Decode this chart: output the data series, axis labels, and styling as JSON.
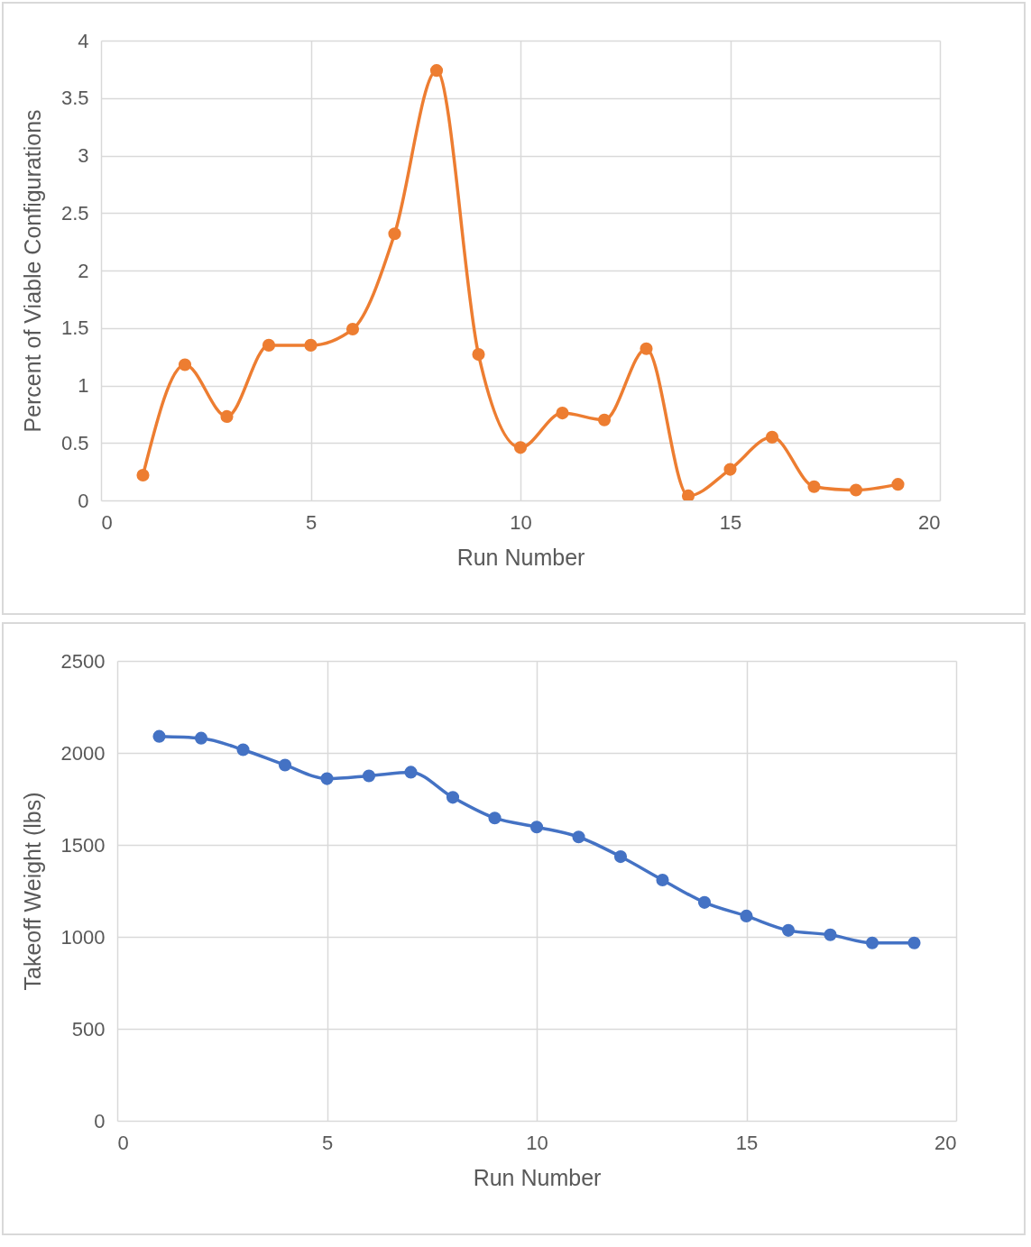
{
  "chart_data": [
    {
      "type": "line",
      "xlabel": "Run Number",
      "ylabel": "Percent of Viable Configurations",
      "x": [
        1,
        2,
        3,
        4,
        5,
        6,
        7,
        8,
        9,
        10,
        11,
        12,
        13,
        14,
        15,
        16,
        17,
        18,
        19
      ],
      "series": [
        {
          "color": "#ed7d31",
          "values": [
            0.22,
            1.18,
            0.73,
            1.35,
            1.35,
            1.49,
            2.32,
            3.74,
            1.27,
            0.46,
            0.76,
            0.7,
            1.32,
            0.04,
            0.27,
            0.55,
            0.12,
            0.09,
            0.14
          ]
        }
      ],
      "xlim": [
        0,
        20
      ],
      "xticks": [
        0,
        5,
        10,
        15,
        20
      ],
      "ylim": [
        0,
        4
      ],
      "yticks": [
        0,
        0.5,
        1,
        1.5,
        2,
        2.5,
        3,
        3.5,
        4
      ],
      "grid": true,
      "marker": "circle",
      "line_style": "solid"
    },
    {
      "type": "line",
      "xlabel": "Run Number",
      "ylabel": "Takeoff Weight (lbs)",
      "x": [
        1,
        2,
        3,
        4,
        5,
        6,
        7,
        8,
        9,
        10,
        11,
        12,
        13,
        14,
        15,
        16,
        17,
        18,
        19
      ],
      "series": [
        {
          "color": "#4472c4",
          "values": [
            2090,
            2080,
            2017,
            1934,
            1860,
            1875,
            1895,
            1758,
            1646,
            1597,
            1543,
            1436,
            1309,
            1187,
            1113,
            1035,
            1011,
            967,
            967
          ]
        }
      ],
      "xlim": [
        0,
        20
      ],
      "xticks": [
        0,
        5,
        10,
        15,
        20
      ],
      "ylim": [
        0,
        2500
      ],
      "yticks": [
        0,
        500,
        1000,
        1500,
        2000,
        2500
      ],
      "grid": true,
      "marker": "circle",
      "line_style": "solid"
    }
  ]
}
